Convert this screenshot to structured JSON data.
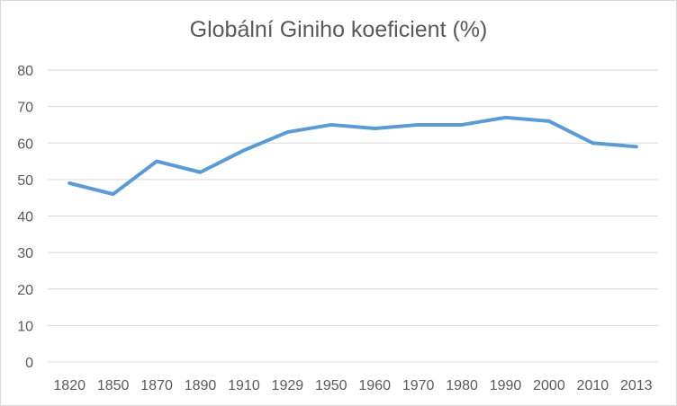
{
  "chart_data": {
    "type": "line",
    "title": "Globální Giniho koeficient (%)",
    "categories": [
      "1820",
      "1850",
      "1870",
      "1890",
      "1910",
      "1929",
      "1950",
      "1960",
      "1970",
      "1980",
      "1990",
      "2000",
      "2010",
      "2013"
    ],
    "series": [
      {
        "values": [
          49,
          46,
          55,
          52,
          58,
          63,
          65,
          64,
          65,
          65,
          67,
          66,
          60,
          59
        ]
      }
    ],
    "ylim": [
      0,
      80
    ],
    "yticks": [
      0,
      10,
      20,
      30,
      40,
      50,
      60,
      70,
      80
    ],
    "grid": true,
    "line_color": "#5b9bd5"
  }
}
